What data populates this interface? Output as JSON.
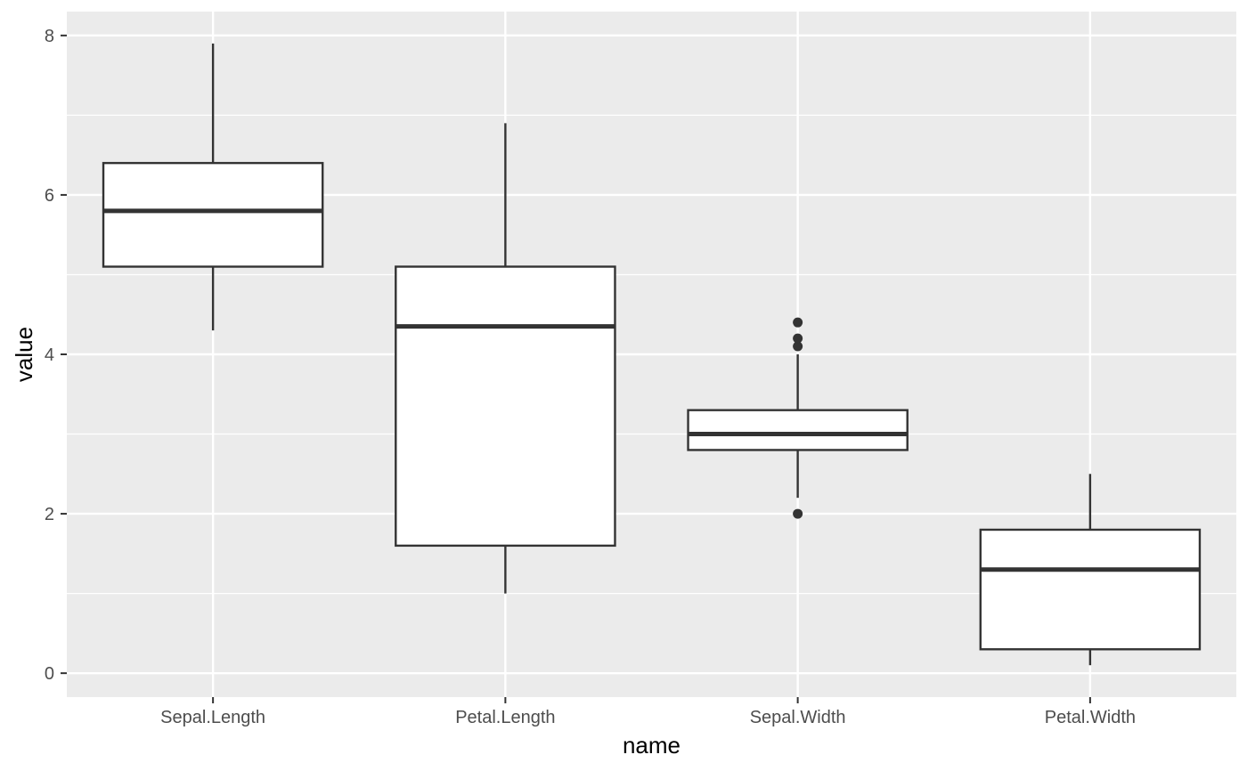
{
  "chart_data": {
    "type": "boxplot",
    "xlabel": "name",
    "ylabel": "value",
    "ylim": [
      -0.3,
      8.3
    ],
    "yticks": [
      0,
      2,
      4,
      6,
      8
    ],
    "y_minor_ticks": [
      1,
      3,
      5,
      7
    ],
    "categories": [
      "Sepal.Length",
      "Petal.Length",
      "Sepal.Width",
      "Petal.Width"
    ],
    "boxes": [
      {
        "category": "Sepal.Length",
        "whisker_low": 4.3,
        "q1": 5.1,
        "median": 5.8,
        "q3": 6.4,
        "whisker_high": 7.9,
        "outliers": []
      },
      {
        "category": "Petal.Length",
        "whisker_low": 1.0,
        "q1": 1.6,
        "median": 4.35,
        "q3": 5.1,
        "whisker_high": 6.9,
        "outliers": []
      },
      {
        "category": "Sepal.Width",
        "whisker_low": 2.2,
        "q1": 2.8,
        "median": 3.0,
        "q3": 3.3,
        "whisker_high": 4.0,
        "outliers": [
          2.0,
          4.1,
          4.2,
          4.4
        ]
      },
      {
        "category": "Petal.Width",
        "whisker_low": 0.1,
        "q1": 0.3,
        "median": 1.3,
        "q3": 1.8,
        "whisker_high": 2.5,
        "outliers": []
      }
    ],
    "grid": true,
    "colors": {
      "panel_background": "#ebebeb",
      "grid": "#ffffff",
      "box_fill": "#ffffff",
      "box_stroke": "#333333",
      "tick_text": "#4d4d4d",
      "axis_title": "#000000"
    }
  }
}
